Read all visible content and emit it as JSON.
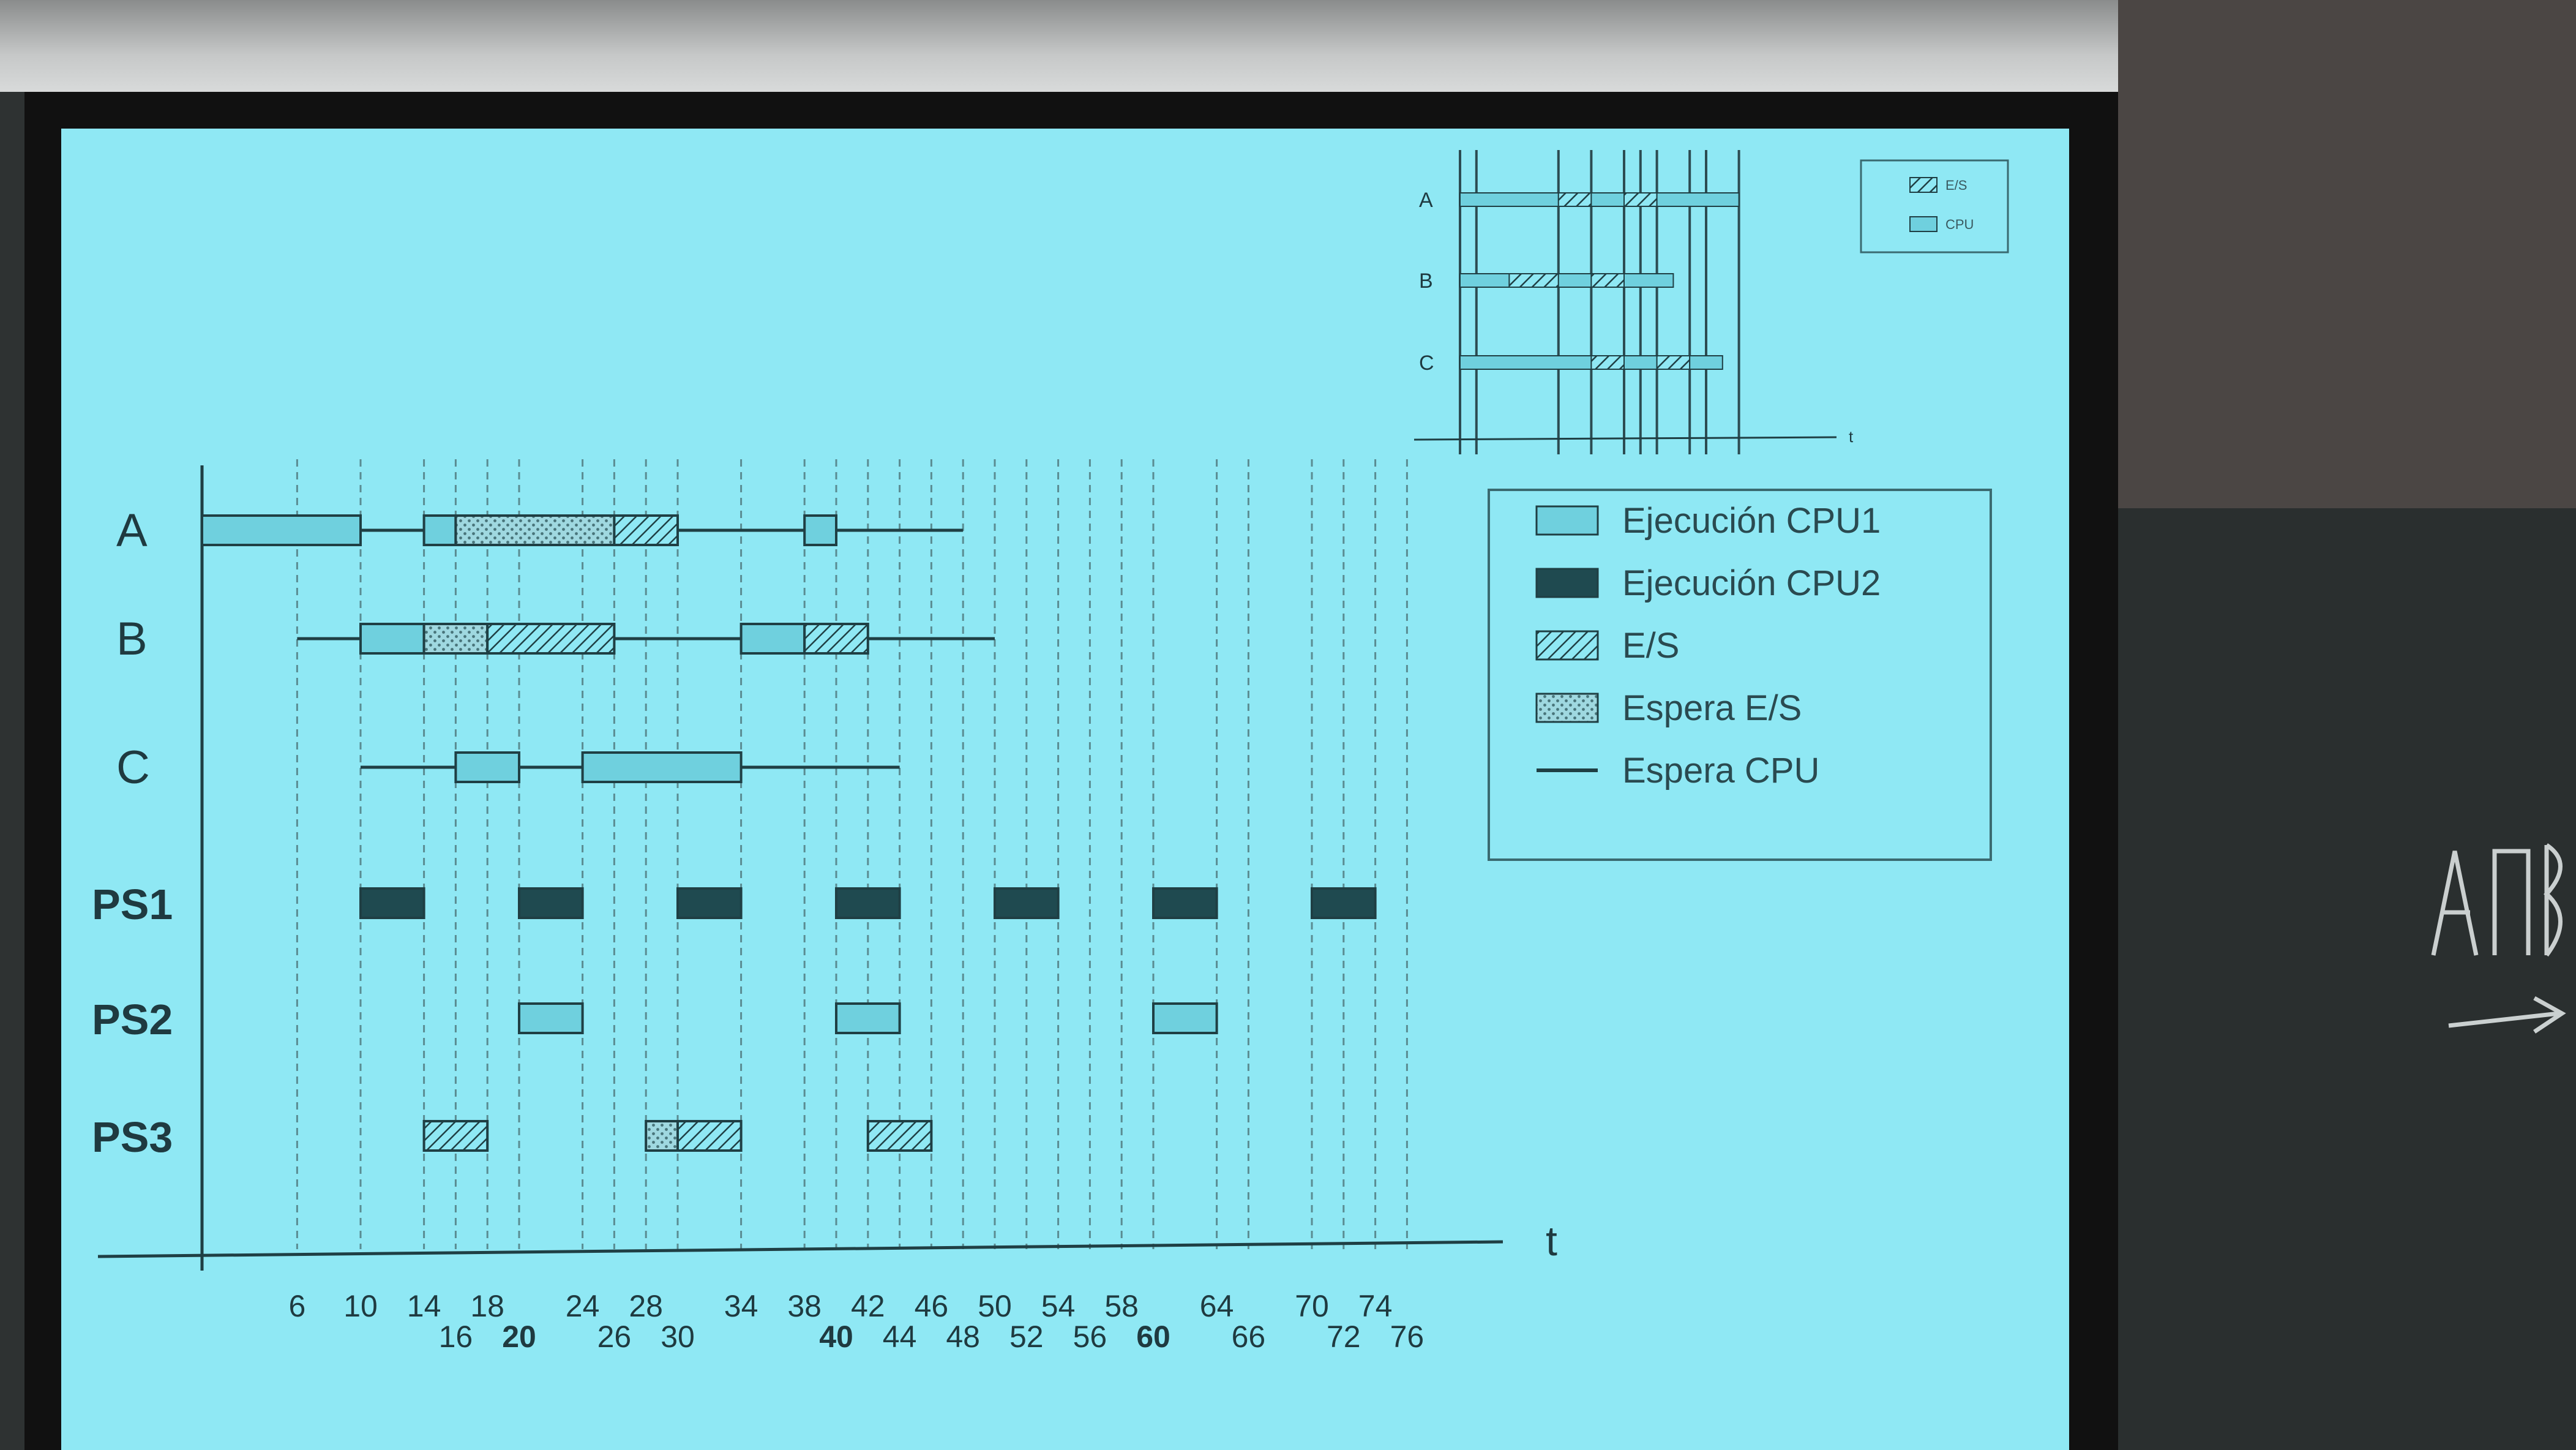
{
  "chart_data": {
    "type": "gantt",
    "xlabel": "t",
    "rows": [
      "A",
      "B",
      "C",
      "PS1",
      "PS2",
      "PS3"
    ],
    "ticks_upper": [
      6,
      10,
      14,
      18,
      24,
      28,
      34,
      38,
      42,
      46,
      50,
      54,
      58,
      64,
      70,
      74
    ],
    "ticks_lower": [
      16,
      20,
      26,
      30,
      40,
      44,
      48,
      52,
      56,
      60,
      66,
      72,
      76
    ],
    "ticks_bold": [
      20,
      40,
      60
    ],
    "gridlines": [
      6,
      10,
      14,
      16,
      18,
      20,
      24,
      26,
      28,
      30,
      34,
      38,
      40,
      42,
      44,
      46,
      48,
      50,
      52,
      54,
      56,
      58,
      60,
      64,
      66,
      70,
      72,
      74,
      76
    ],
    "segments": [
      {
        "row": "A",
        "state": "cpu1",
        "start": 0,
        "end": 10
      },
      {
        "row": "A",
        "state": "wait_cpu",
        "start": 10,
        "end": 14
      },
      {
        "row": "A",
        "state": "cpu1",
        "start": 14,
        "end": 16
      },
      {
        "row": "A",
        "state": "io_wait",
        "start": 16,
        "end": 26
      },
      {
        "row": "A",
        "state": "io",
        "start": 26,
        "end": 30
      },
      {
        "row": "A",
        "state": "wait_cpu",
        "start": 30,
        "end": 38
      },
      {
        "row": "A",
        "state": "cpu1",
        "start": 38,
        "end": 40
      },
      {
        "row": "A",
        "state": "wait_cpu",
        "start": 40,
        "end": 48
      },
      {
        "row": "B",
        "state": "wait_cpu",
        "start": 6,
        "end": 10
      },
      {
        "row": "B",
        "state": "cpu1",
        "start": 10,
        "end": 14
      },
      {
        "row": "B",
        "state": "io_wait",
        "start": 14,
        "end": 18
      },
      {
        "row": "B",
        "state": "io",
        "start": 18,
        "end": 26
      },
      {
        "row": "B",
        "state": "wait_cpu",
        "start": 26,
        "end": 34
      },
      {
        "row": "B",
        "state": "cpu1",
        "start": 34,
        "end": 38
      },
      {
        "row": "B",
        "state": "io",
        "start": 38,
        "end": 42
      },
      {
        "row": "B",
        "state": "wait_cpu",
        "start": 42,
        "end": 50
      },
      {
        "row": "C",
        "state": "wait_cpu",
        "start": 10,
        "end": 16
      },
      {
        "row": "C",
        "state": "cpu1",
        "start": 16,
        "end": 20
      },
      {
        "row": "C",
        "state": "wait_cpu",
        "start": 20,
        "end": 24
      },
      {
        "row": "C",
        "state": "cpu1",
        "start": 24,
        "end": 34
      },
      {
        "row": "C",
        "state": "wait_cpu",
        "start": 34,
        "end": 44
      },
      {
        "row": "PS1",
        "state": "cpu2",
        "start": 10,
        "end": 14
      },
      {
        "row": "PS1",
        "state": "cpu2",
        "start": 20,
        "end": 24
      },
      {
        "row": "PS1",
        "state": "cpu2",
        "start": 30,
        "end": 34
      },
      {
        "row": "PS1",
        "state": "cpu2",
        "start": 40,
        "end": 44
      },
      {
        "row": "PS1",
        "state": "cpu2",
        "start": 50,
        "end": 54
      },
      {
        "row": "PS1",
        "state": "cpu2",
        "start": 60,
        "end": 64
      },
      {
        "row": "PS1",
        "state": "cpu2",
        "start": 70,
        "end": 74
      },
      {
        "row": "PS2",
        "state": "cpu1",
        "start": 20,
        "end": 24
      },
      {
        "row": "PS2",
        "state": "cpu1",
        "start": 40,
        "end": 44
      },
      {
        "row": "PS2",
        "state": "cpu1",
        "start": 60,
        "end": 64
      },
      {
        "row": "PS3",
        "state": "io",
        "start": 14,
        "end": 18
      },
      {
        "row": "PS3",
        "state": "io_wait",
        "start": 28,
        "end": 30
      },
      {
        "row": "PS3",
        "state": "io",
        "start": 30,
        "end": 34
      },
      {
        "row": "PS3",
        "state": "io",
        "start": 42,
        "end": 46
      }
    ]
  },
  "legend": {
    "items": [
      {
        "key": "cpu1",
        "label": "Ejecución CPU1"
      },
      {
        "key": "cpu2",
        "label": "Ejecución CPU2"
      },
      {
        "key": "io",
        "label": "E/S"
      },
      {
        "key": "io_wait",
        "label": "Espera E/S"
      },
      {
        "key": "wait_cpu",
        "label": "Espera CPU"
      }
    ]
  },
  "inset": {
    "rows": [
      "A",
      "B",
      "C"
    ],
    "xlabel": "t",
    "legend": [
      {
        "key": "io",
        "label": "E/S"
      },
      {
        "key": "cpu1",
        "label": "CPU"
      }
    ],
    "segments": [
      {
        "row": "A",
        "state": "cpu1",
        "start": 0,
        "end": 12
      },
      {
        "row": "A",
        "state": "io",
        "start": 12,
        "end": 16
      },
      {
        "row": "A",
        "state": "cpu1",
        "start": 16,
        "end": 20
      },
      {
        "row": "A",
        "state": "io",
        "start": 20,
        "end": 24
      },
      {
        "row": "A",
        "state": "cpu1",
        "start": 24,
        "end": 34
      },
      {
        "row": "B",
        "state": "cpu1",
        "start": 0,
        "end": 6
      },
      {
        "row": "B",
        "state": "io",
        "start": 6,
        "end": 12
      },
      {
        "row": "B",
        "state": "cpu1",
        "start": 12,
        "end": 16
      },
      {
        "row": "B",
        "state": "io",
        "start": 16,
        "end": 20
      },
      {
        "row": "B",
        "state": "cpu1",
        "start": 20,
        "end": 26
      },
      {
        "row": "C",
        "state": "cpu1",
        "start": 0,
        "end": 16
      },
      {
        "row": "C",
        "state": "io",
        "start": 16,
        "end": 20
      },
      {
        "row": "C",
        "state": "cpu1",
        "start": 20,
        "end": 24
      },
      {
        "row": "C",
        "state": "io",
        "start": 24,
        "end": 28
      },
      {
        "row": "C",
        "state": "cpu1",
        "start": 28,
        "end": 32
      }
    ]
  },
  "colors": {
    "screen": "#8fe8f4",
    "cpu1_fill": "#6fd0de",
    "cpu2_fill": "#1f4a50",
    "line": "#1f3f44",
    "grid": "#5a8c92",
    "text": "#1f3a40"
  }
}
